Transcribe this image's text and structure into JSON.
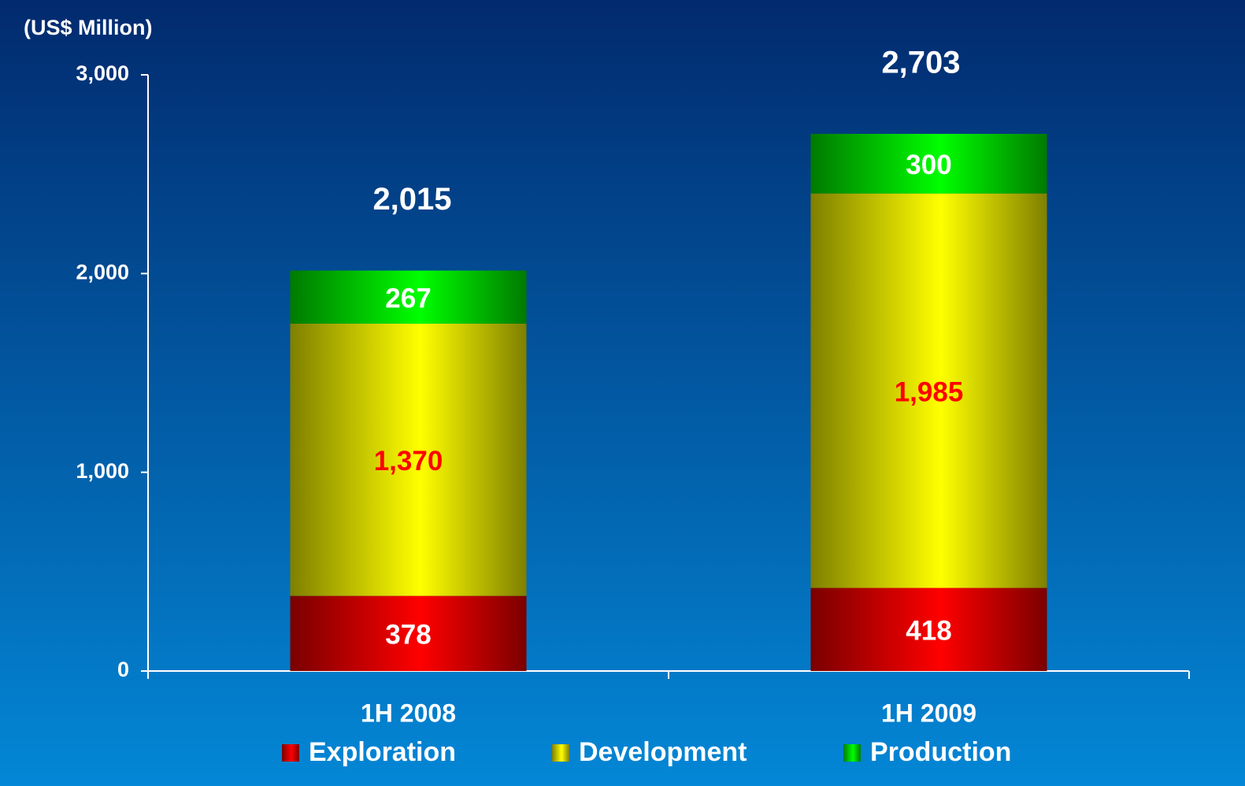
{
  "chart_data": {
    "type": "stacked_bar",
    "y_axis_label": "(US$ Million)",
    "categories": [
      "1H 2008",
      "1H 2009"
    ],
    "series": [
      {
        "name": "Exploration",
        "color": "#ff0000",
        "dark_color": "#7a0000",
        "label_color": "#ffffff",
        "values": [
          378,
          418
        ],
        "value_labels": [
          "378",
          "418"
        ]
      },
      {
        "name": "Development",
        "color": "#ffff00",
        "dark_color": "#7f7f00",
        "label_color": "#ff0000",
        "values": [
          1370,
          1985
        ],
        "value_labels": [
          "1,370",
          "1,985"
        ]
      },
      {
        "name": "Production",
        "color": "#00ff00",
        "dark_color": "#007a00",
        "label_color": "#ffffff",
        "values": [
          267,
          300
        ],
        "value_labels": [
          "267",
          "300"
        ]
      }
    ],
    "totals": [
      2015,
      2703
    ],
    "total_labels": [
      "2,015",
      "2,703"
    ],
    "ylim": [
      0,
      3000
    ],
    "yticks": [
      0,
      {
        "value": 1000,
        "label": "1,000"
      },
      {
        "value": 2000,
        "label": "2,000"
      },
      {
        "value": 3000,
        "label": "3,000"
      }
    ],
    "legend": "bottom"
  }
}
